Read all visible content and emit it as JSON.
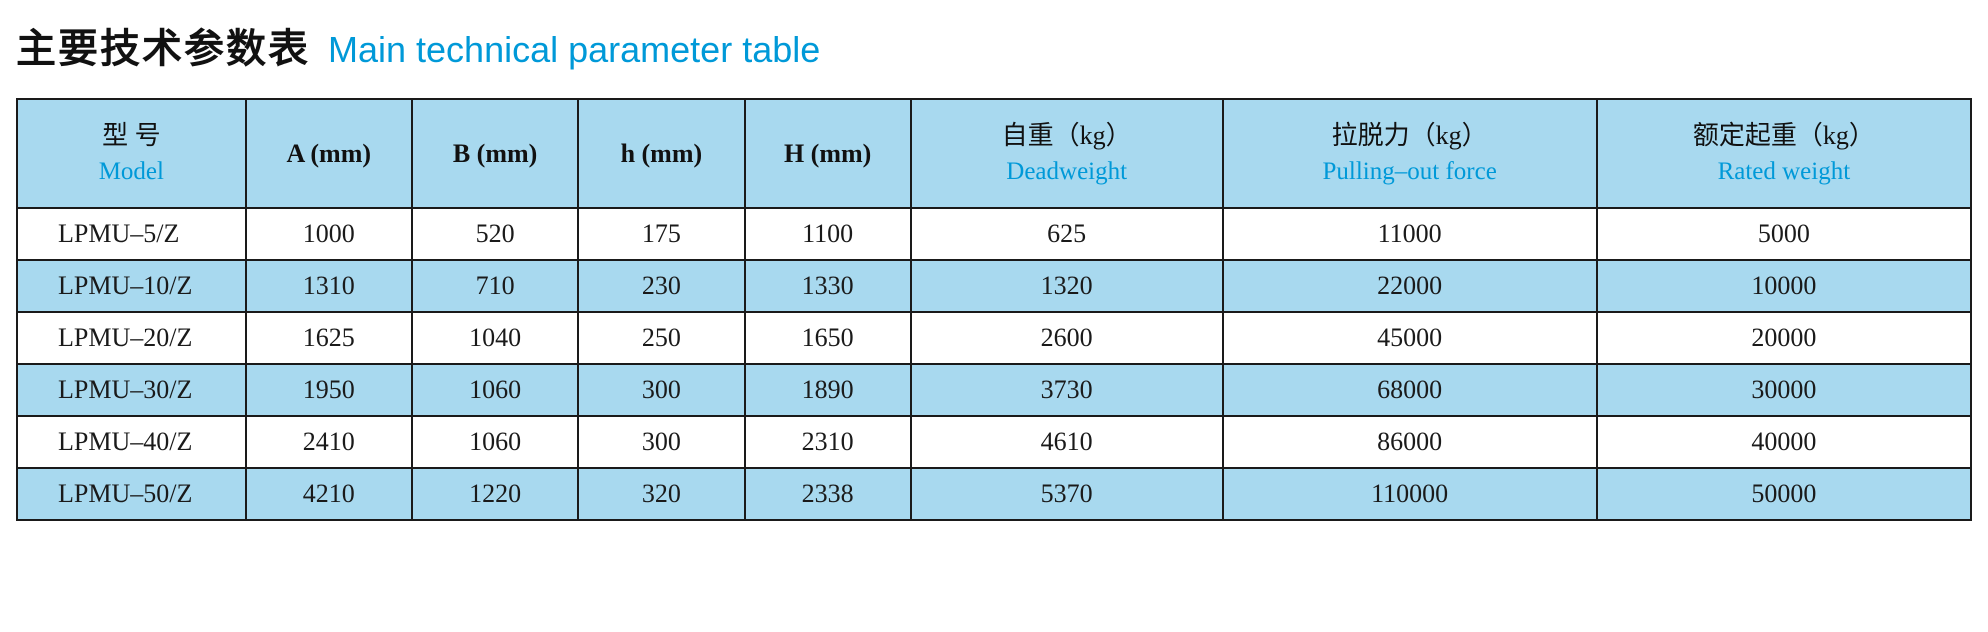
{
  "title": {
    "cn": "主要技术参数表",
    "en": "Main technical parameter table"
  },
  "columns": [
    {
      "cn": "型 号",
      "en": "Model",
      "bilingual": true
    },
    {
      "label": "A (mm)",
      "bilingual": false
    },
    {
      "label": "B (mm)",
      "bilingual": false
    },
    {
      "label": "h (mm)",
      "bilingual": false
    },
    {
      "label": "H (mm)",
      "bilingual": false
    },
    {
      "cn": "自重（kg）",
      "en": "Deadweight",
      "bilingual": true
    },
    {
      "cn": "拉脱力（kg）",
      "en": "Pulling–out force",
      "bilingual": true
    },
    {
      "cn": "额定起重（kg）",
      "en": "Rated weight",
      "bilingual": true
    }
  ],
  "colClasses": [
    "c0",
    "c1",
    "c2",
    "c3",
    "c4",
    "c5",
    "c6",
    "c7"
  ],
  "rows": [
    [
      "LPMU–5/Z",
      "1000",
      "520",
      "175",
      "1100",
      "625",
      "11000",
      "5000"
    ],
    [
      "LPMU–10/Z",
      "1310",
      "710",
      "230",
      "1330",
      "1320",
      "22000",
      "10000"
    ],
    [
      "LPMU–20/Z",
      "1625",
      "1040",
      "250",
      "1650",
      "2600",
      "45000",
      "20000"
    ],
    [
      "LPMU–30/Z",
      "1950",
      "1060",
      "300",
      "1890",
      "3730",
      "68000",
      "30000"
    ],
    [
      "LPMU–40/Z",
      "2410",
      "1060",
      "300",
      "2310",
      "4610",
      "86000",
      "40000"
    ],
    [
      "LPMU–50/Z",
      "4210",
      "1220",
      "320",
      "2338",
      "5370",
      "110000",
      "50000"
    ]
  ],
  "style": {
    "header_bg": "#a8d9ef",
    "alt_row_bg": "#a8d9ef",
    "row_bg": "#ffffff",
    "border_color": "#1a1a1a",
    "accent_color": "#0099d8",
    "title_cn_fontsize": 40,
    "title_en_fontsize": 36,
    "cell_fontsize": 26
  }
}
